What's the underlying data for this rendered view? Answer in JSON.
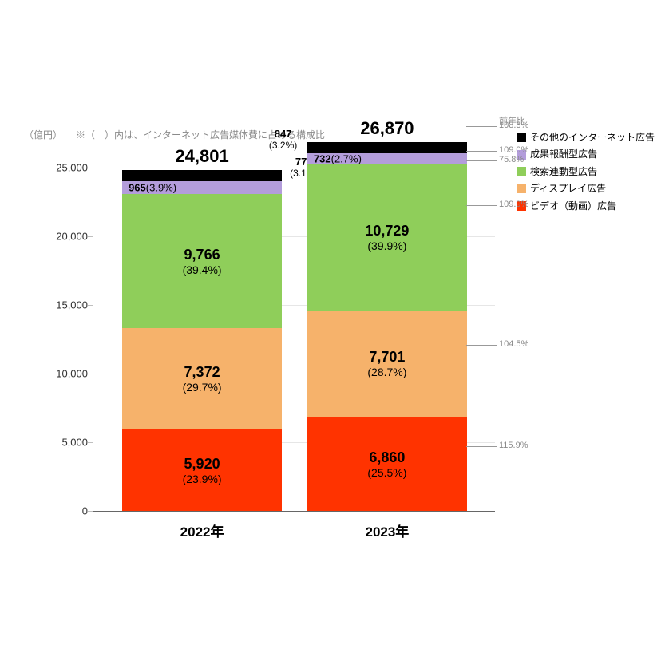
{
  "chart": {
    "type": "stacked-bar",
    "unit_label": "（億円）",
    "header_note": "※（　）内は、インターネット広告媒体費に占める構成比",
    "background_color": "#ffffff",
    "grid_color": "#e6e6e6",
    "axis_color": "#666666",
    "label_color": "#333333",
    "note_color": "#8a8a8a",
    "ylim": [
      0,
      25000
    ],
    "ytick_step": 5000,
    "yticks": [
      "0",
      "5,000",
      "10,000",
      "15,000",
      "20,000",
      "25,000"
    ],
    "categories": [
      "2022年",
      "2023年"
    ],
    "series": [
      {
        "name": "ビデオ（動画）広告",
        "color": "#ff3300"
      },
      {
        "name": "ディスプレイ広告",
        "color": "#f6b26b"
      },
      {
        "name": "検索連動型広告",
        "color": "#8fce5a"
      },
      {
        "name": "成果報酬型広告",
        "color": "#b39ddb"
      },
      {
        "name": "その他のインターネット広告",
        "color": "#000000"
      }
    ],
    "bars": [
      {
        "category": "2022年",
        "total": 24801,
        "total_display": "24,801",
        "segments": [
          {
            "series": 0,
            "value": 5920,
            "display": "5,920",
            "pct": "(23.9%)"
          },
          {
            "series": 1,
            "value": 7372,
            "display": "7,372",
            "pct": "(29.7%)"
          },
          {
            "series": 2,
            "value": 9766,
            "display": "9,766",
            "pct": "(39.4%)"
          },
          {
            "series": 3,
            "value": 965,
            "display": "965",
            "pct": "(3.9%)",
            "inline": true
          },
          {
            "series": 4,
            "value": 778,
            "display": "778",
            "pct": "(3.1%)",
            "callout": true
          }
        ]
      },
      {
        "category": "2023年",
        "total": 26870,
        "total_display": "26,870",
        "segments": [
          {
            "series": 0,
            "value": 6860,
            "display": "6,860",
            "pct": "(25.5%)"
          },
          {
            "series": 1,
            "value": 7701,
            "display": "7,701",
            "pct": "(28.7%)"
          },
          {
            "series": 2,
            "value": 10729,
            "display": "10,729",
            "pct": "(39.9%)"
          },
          {
            "series": 3,
            "value": 732,
            "display": "732",
            "pct": "(2.7%)",
            "inline": true
          },
          {
            "series": 4,
            "value": 847,
            "display": "847",
            "pct": "(3.2%)",
            "callout": true
          }
        ]
      }
    ],
    "yoy": {
      "header": "前年比",
      "values": [
        "108.3%",
        "109.0%",
        "75.8%",
        "109.9%",
        "104.5%",
        "115.9%"
      ]
    },
    "fonts": {
      "total_fontsize": 22,
      "value_fontsize": 18,
      "pct_fontsize": 14,
      "axis_fontsize": 13,
      "category_fontsize": 17,
      "legend_fontsize": 12,
      "yoy_fontsize": 11
    }
  }
}
